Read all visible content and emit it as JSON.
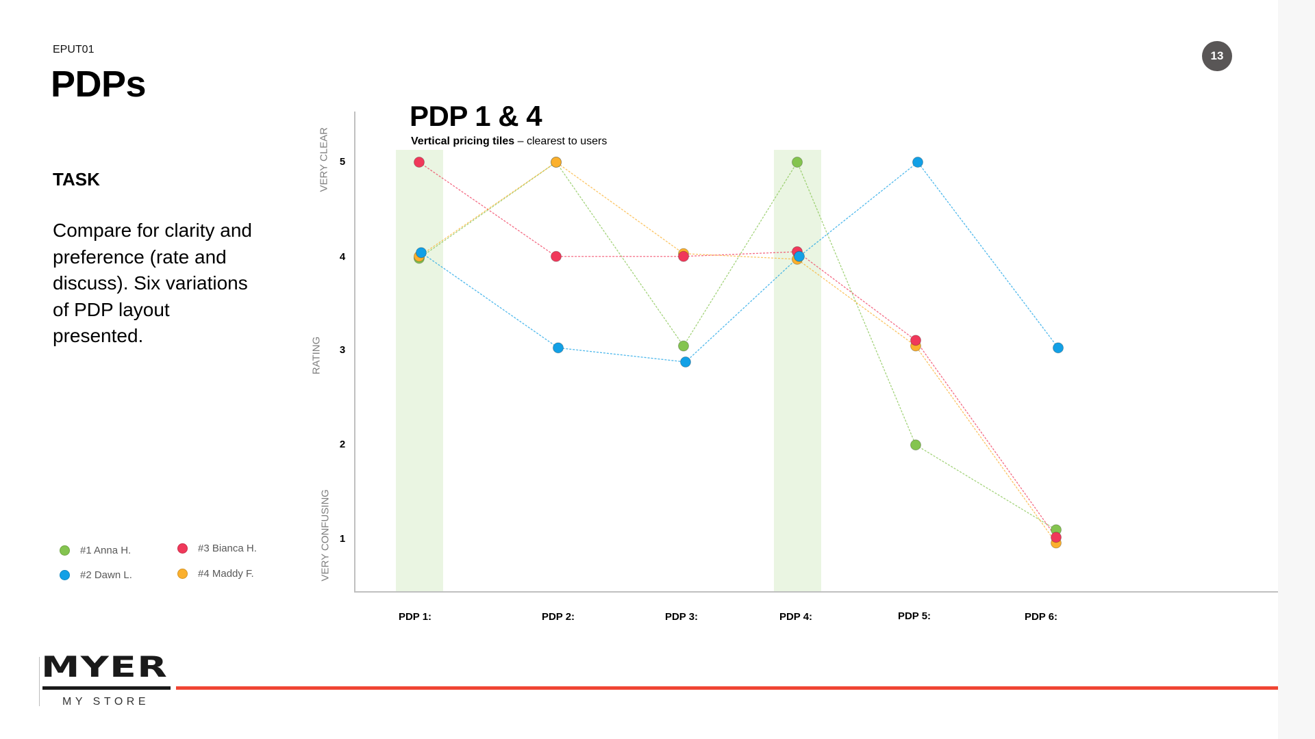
{
  "slide": {
    "code": "EPUT01",
    "title": "PDPs",
    "page_number": "13",
    "task_heading": "TASK",
    "task_body": "Compare for clarity and preference (rate and discuss). Six variations of PDP layout presented.",
    "chart_heading": "PDP 1 & 4",
    "chart_subtitle_bold": "Vertical pricing tiles",
    "chart_subtitle_rest": " – clearest to users",
    "brand": {
      "wordmark": "MYER",
      "tagline": "MY STORE",
      "accent_color": "#f04533"
    }
  },
  "legend": [
    {
      "label": "#1 Anna H.",
      "color": "#84c44f"
    },
    {
      "label": "#2 Dawn L.",
      "color": "#12a0e6"
    },
    {
      "label": "#3 Bianca H.",
      "color": "#f0385a"
    },
    {
      "label": "#4 Maddy F.",
      "color": "#fbb02d"
    }
  ],
  "chart_data": {
    "type": "line",
    "title": "PDP 1 & 4",
    "subtitle": "Vertical pricing tiles – clearest to users",
    "xlabel": "",
    "ylabel": "RATING",
    "y_top_label": "VERY CLEAR",
    "y_bottom_label": "VERY CONFUSING",
    "ylim": [
      1,
      5
    ],
    "yticks": [
      5,
      4,
      3,
      2,
      1
    ],
    "categories": [
      "PDP 1:",
      "PDP 2:",
      "PDP 3:",
      "PDP 4:",
      "PDP 5:",
      "PDP 6:"
    ],
    "highlighted_categories": [
      "PDP 1:",
      "PDP 4:"
    ],
    "highlight_color": "#eaf5e2",
    "grid": false,
    "legend_position": "bottom-left",
    "line_style": "dashed",
    "series": [
      {
        "name": "#1 Anna H.",
        "color": "#84c44f",
        "values": [
          4,
          5,
          3,
          5,
          2,
          1
        ]
      },
      {
        "name": "#2 Dawn L.",
        "color": "#12a0e6",
        "values": [
          4,
          3,
          3,
          4,
          5,
          3
        ]
      },
      {
        "name": "#3 Bianca H.",
        "color": "#f0385a",
        "values": [
          5,
          4,
          4,
          4,
          3,
          1
        ]
      },
      {
        "name": "#4 Maddy F.",
        "color": "#fbb02d",
        "values": [
          4,
          5,
          4,
          4,
          3,
          1
        ]
      }
    ],
    "render_offsets": {
      "#1 Anna H.": [
        -0.02,
        0.0,
        0.05,
        0.0,
        0.0,
        0.1
      ],
      "#2 Dawn L.": [
        0.04,
        0.03,
        -0.12,
        0.0,
        0.0,
        0.03
      ],
      "#3 Bianca H.": [
        0.0,
        0.0,
        0.0,
        0.05,
        0.11,
        0.02
      ],
      "#4 Maddy F.": [
        0.0,
        0.0,
        0.03,
        -0.03,
        0.05,
        -0.04
      ]
    }
  }
}
